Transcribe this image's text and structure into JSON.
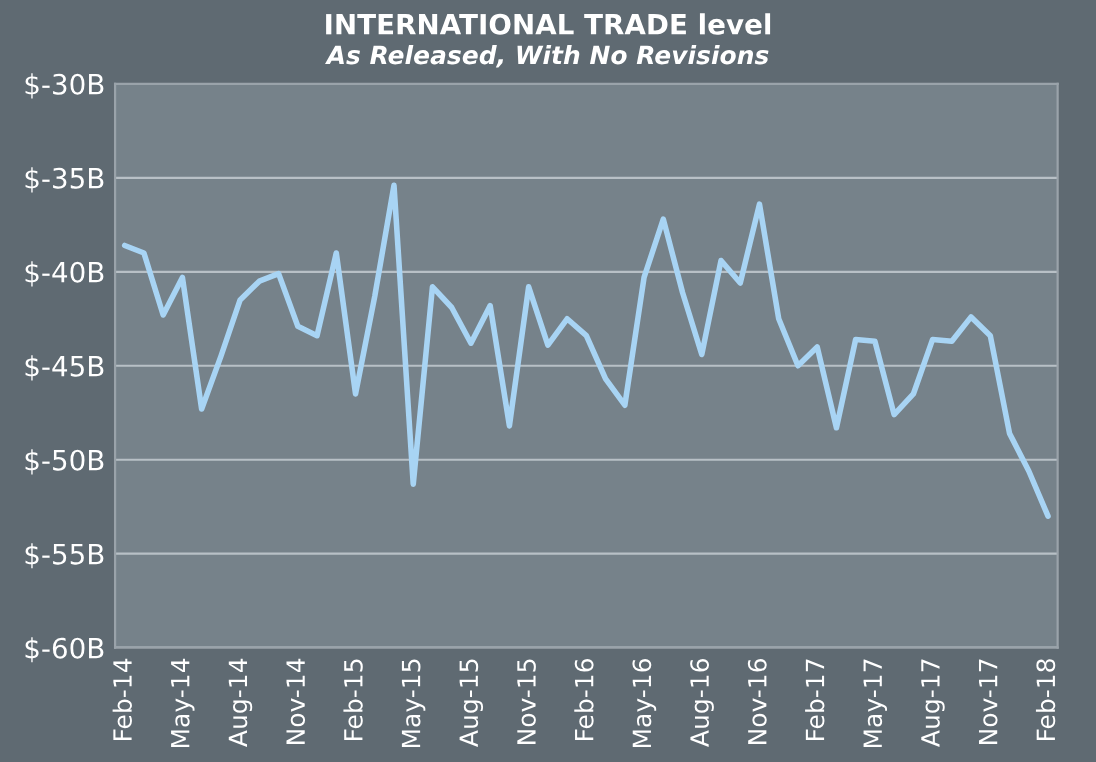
{
  "chart_data": {
    "type": "line",
    "title": "INTERNATIONAL TRADE level",
    "subtitle": "As Released, With No Revisions",
    "categories": [
      "Feb-14",
      null,
      null,
      "May-14",
      null,
      null,
      "Aug-14",
      null,
      null,
      "Nov-14",
      null,
      null,
      "Feb-15",
      null,
      null,
      "May-15",
      null,
      null,
      "Aug-15",
      null,
      null,
      "Nov-15",
      null,
      null,
      "Feb-16",
      null,
      null,
      "May-16",
      null,
      null,
      "Aug-16",
      null,
      null,
      "Nov-16",
      null,
      null,
      "Feb-17",
      null,
      null,
      "May-17",
      null,
      null,
      "Aug-17",
      null,
      null,
      "Nov-17",
      null,
      null,
      "Feb-18"
    ],
    "series": [
      {
        "color": "#a8d4f4",
        "values": [
          -38.6,
          -39.0,
          -42.3,
          -40.3,
          -47.3,
          -44.5,
          -41.5,
          -40.5,
          -40.1,
          -42.9,
          -43.4,
          -39.0,
          -46.5,
          -41.3,
          -35.4,
          -51.3,
          -40.8,
          -41.9,
          -43.8,
          -41.8,
          -48.2,
          -40.8,
          -43.9,
          -42.5,
          -43.4,
          -45.7,
          -47.1,
          -40.3,
          -37.2,
          -41.1,
          -44.4,
          -39.4,
          -40.6,
          -36.4,
          -42.5,
          -45.0,
          -44.0,
          -48.3,
          -43.6,
          -43.7,
          -47.6,
          -46.5,
          -43.6,
          -43.7,
          -42.4,
          -43.4,
          -48.6,
          -50.6,
          -53.0
        ]
      }
    ],
    "ylim": [
      -60,
      -30
    ],
    "yticks": [
      {
        "value": -60,
        "label": "$-60B"
      },
      {
        "value": -55,
        "label": "$-55B"
      },
      {
        "value": -50,
        "label": "$-50B"
      },
      {
        "value": -45,
        "label": "$-45B"
      },
      {
        "value": -40,
        "label": "$-40B"
      },
      {
        "value": -35,
        "label": "$-35B"
      },
      {
        "value": -30,
        "label": "$-30B"
      }
    ],
    "grid": "y",
    "marker": "none",
    "line_style": "solid"
  }
}
